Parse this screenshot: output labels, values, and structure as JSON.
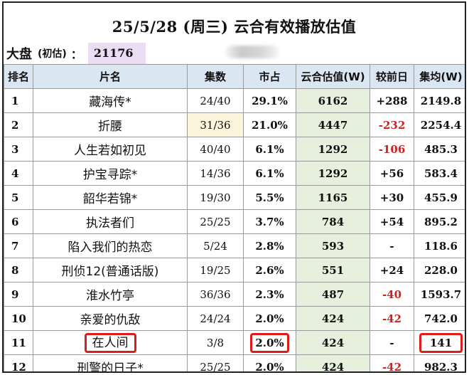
{
  "title": "25/5/28 (周三) 云合有效播放估值",
  "market": {
    "label": "大盘",
    "note": "(初估)",
    "colon": "：",
    "value": "21176"
  },
  "columns": [
    "排名",
    "片名",
    "集数",
    "市占",
    "云合估值(W)",
    "较前日",
    "集均(W)"
  ],
  "colors": {
    "header_bg": "#dbe6f3",
    "estimate_bg": "#e6f0dc",
    "negative": "#d21f1f",
    "highlight_box": "#e01b1b",
    "total_bg": "#eadcf3"
  },
  "rows": [
    {
      "rank": "1",
      "name": "藏海传*",
      "episodes": "24/40",
      "share": "29.1%",
      "estimate": "6162",
      "delta": "+288",
      "avg": "2149.8"
    },
    {
      "rank": "2",
      "name": "折腰",
      "episodes": "31/36",
      "share": "21.0%",
      "estimate": "4447",
      "delta": "-232",
      "avg": "2254.4"
    },
    {
      "rank": "3",
      "name": "人生若如初见",
      "episodes": "40/40",
      "share": "6.1%",
      "estimate": "1292",
      "delta": "-106",
      "avg": "485.3"
    },
    {
      "rank": "4",
      "name": "护宝寻踪*",
      "episodes": "14/36",
      "share": "6.1%",
      "estimate": "1292",
      "delta": "+56",
      "avg": "583.4"
    },
    {
      "rank": "5",
      "name": "韶华若锦*",
      "episodes": "19/30",
      "share": "5.5%",
      "estimate": "1165",
      "delta": "+30",
      "avg": "455.9"
    },
    {
      "rank": "6",
      "name": "执法者们",
      "episodes": "25/25",
      "share": "3.7%",
      "estimate": "784",
      "delta": "+54",
      "avg": "895.2"
    },
    {
      "rank": "7",
      "name": "陷入我们的热恋",
      "episodes": "5/24",
      "share": "2.8%",
      "estimate": "593",
      "delta": "-",
      "avg": "118.6"
    },
    {
      "rank": "8",
      "name": "刑侦12(普通话版)",
      "episodes": "19/25",
      "share": "2.6%",
      "estimate": "551",
      "delta": "+24",
      "avg": "228.0"
    },
    {
      "rank": "9",
      "name": "淮水竹亭",
      "episodes": "36/36",
      "share": "2.3%",
      "estimate": "487",
      "delta": "-40",
      "avg": "1593.7"
    },
    {
      "rank": "10",
      "name": "亲爱的仇敌",
      "episodes": "24/24",
      "share": "2.0%",
      "estimate": "424",
      "delta": "-42",
      "avg": "742.0"
    },
    {
      "rank": "11",
      "name": "在人间",
      "episodes": "3/8",
      "share": "2.0%",
      "estimate": "424",
      "delta": "-",
      "avg": "141"
    },
    {
      "rank": "12",
      "name": "刑警的日子*",
      "episodes": "25/25",
      "share": "2.0%",
      "estimate": "424",
      "delta": "-42",
      "avg": "982.3"
    }
  ]
}
